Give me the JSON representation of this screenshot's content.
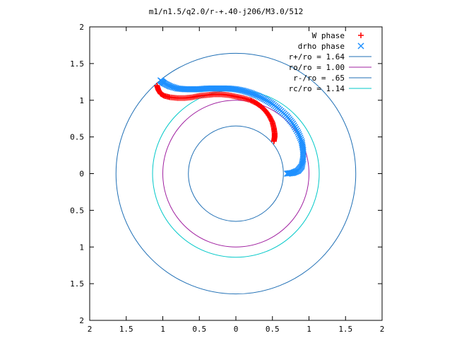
{
  "chart_data": {
    "type": "scatter",
    "title": "m1/n1.5/q2.0/r-+.40-j206/M3.0/512",
    "xlim": [
      -2,
      2
    ],
    "ylim": [
      -2,
      2
    ],
    "x_ticks": [
      "2",
      "1.5",
      "1",
      "0.5",
      "0",
      "0.5",
      "1",
      "1.5",
      "2"
    ],
    "y_ticks": [
      "2",
      "1.5",
      "1",
      "0.5",
      "0",
      "0.5",
      "1",
      "1.5",
      "2"
    ],
    "grid": false,
    "legend_position": "top-right",
    "circles": [
      {
        "name": "r+/ro = 1.64",
        "radius": 1.64,
        "color": "#1f6fb5"
      },
      {
        "name": "ro/ro = 1.00",
        "radius": 1.0,
        "color": "#a020a0"
      },
      {
        "name": "r-/ro = .65",
        "radius": 0.65,
        "color": "#1f6fb5"
      },
      {
        "name": "rc/ro = 1.14",
        "radius": 1.14,
        "color": "#00c8c8"
      }
    ],
    "series": [
      {
        "name": "W phase",
        "marker": "plus",
        "color": "#ff0000",
        "points": [
          [
            -1.08,
            1.2
          ],
          [
            -1.06,
            1.14
          ],
          [
            -1.03,
            1.09
          ],
          [
            -0.98,
            1.06
          ],
          [
            -0.9,
            1.04
          ],
          [
            -0.8,
            1.03
          ],
          [
            -0.7,
            1.03
          ],
          [
            -0.6,
            1.04
          ],
          [
            -0.5,
            1.06
          ],
          [
            -0.4,
            1.07
          ],
          [
            -0.3,
            1.08
          ],
          [
            -0.2,
            1.08
          ],
          [
            -0.1,
            1.07
          ],
          [
            0.0,
            1.05
          ],
          [
            0.1,
            1.03
          ],
          [
            0.2,
            1.0
          ],
          [
            0.28,
            0.96
          ],
          [
            0.35,
            0.91
          ],
          [
            0.41,
            0.85
          ],
          [
            0.46,
            0.78
          ],
          [
            0.5,
            0.7
          ],
          [
            0.52,
            0.62
          ],
          [
            0.53,
            0.55
          ],
          [
            0.53,
            0.5
          ],
          [
            0.52,
            0.44
          ]
        ]
      },
      {
        "name": "drho phase",
        "marker": "cross",
        "color": "#1e90ff",
        "points": [
          [
            -1.03,
            1.27
          ],
          [
            -0.98,
            1.23
          ],
          [
            -0.9,
            1.19
          ],
          [
            -0.8,
            1.16
          ],
          [
            -0.7,
            1.15
          ],
          [
            -0.6,
            1.15
          ],
          [
            -0.5,
            1.15
          ],
          [
            -0.4,
            1.16
          ],
          [
            -0.3,
            1.16
          ],
          [
            -0.2,
            1.16
          ],
          [
            -0.1,
            1.16
          ],
          [
            0.0,
            1.15
          ],
          [
            0.1,
            1.13
          ],
          [
            0.2,
            1.1
          ],
          [
            0.3,
            1.06
          ],
          [
            0.4,
            1.01
          ],
          [
            0.5,
            0.95
          ],
          [
            0.6,
            0.87
          ],
          [
            0.7,
            0.78
          ],
          [
            0.78,
            0.68
          ],
          [
            0.85,
            0.56
          ],
          [
            0.9,
            0.44
          ],
          [
            0.92,
            0.32
          ],
          [
            0.92,
            0.2
          ],
          [
            0.9,
            0.1
          ],
          [
            0.85,
            0.04
          ],
          [
            0.78,
            0.01
          ],
          [
            0.7,
            0.0
          ]
        ]
      }
    ]
  }
}
